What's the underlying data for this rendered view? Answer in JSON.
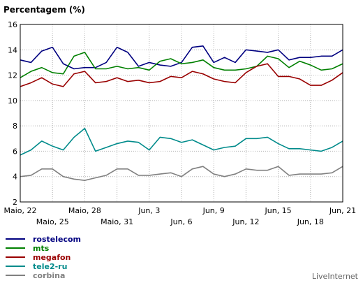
{
  "chart_data": {
    "type": "line",
    "title": "Percentagem (%)",
    "ylim": [
      2,
      16
    ],
    "yticks": [
      2,
      4,
      6,
      8,
      10,
      12,
      14,
      16
    ],
    "grid": true,
    "legend_position": "bottom-left",
    "x": [
      "2024-05-22",
      "2024-05-23",
      "2024-05-24",
      "2024-05-25",
      "2024-05-26",
      "2024-05-27",
      "2024-05-28",
      "2024-05-29",
      "2024-05-30",
      "2024-05-31",
      "2024-06-01",
      "2024-06-02",
      "2024-06-03",
      "2024-06-04",
      "2024-06-05",
      "2024-06-06",
      "2024-06-07",
      "2024-06-08",
      "2024-06-09",
      "2024-06-10",
      "2024-06-11",
      "2024-06-12",
      "2024-06-13",
      "2024-06-14",
      "2024-06-15",
      "2024-06-16",
      "2024-06-17",
      "2024-06-18",
      "2024-06-19",
      "2024-06-20",
      "2024-06-21"
    ],
    "xticks_row1": [
      {
        "date": "2024-05-22",
        "label": "Maio, 22"
      },
      {
        "date": "2024-05-28",
        "label": "Maio, 28"
      },
      {
        "date": "2024-06-03",
        "label": "Jun, 3"
      },
      {
        "date": "2024-06-09",
        "label": "Jun, 9"
      },
      {
        "date": "2024-06-15",
        "label": "Jun, 15"
      },
      {
        "date": "2024-06-21",
        "label": "Jun, 21"
      }
    ],
    "xticks_row2": [
      {
        "date": "2024-05-25",
        "label": "Maio, 25"
      },
      {
        "date": "2024-05-31",
        "label": "Maio, 31"
      },
      {
        "date": "2024-06-06",
        "label": "Jun, 6"
      },
      {
        "date": "2024-06-12",
        "label": "Jun, 12"
      },
      {
        "date": "2024-06-18",
        "label": "Jun, 18"
      }
    ],
    "series": [
      {
        "name": "rostelecom",
        "color": "#000080",
        "values": [
          13.2,
          13.0,
          13.9,
          14.2,
          12.9,
          12.5,
          12.6,
          12.6,
          13.0,
          14.2,
          13.8,
          12.7,
          13.0,
          12.8,
          12.7,
          13.0,
          14.2,
          14.3,
          13.0,
          13.4,
          13.0,
          14.0,
          13.9,
          13.8,
          14.0,
          13.2,
          13.4,
          13.4,
          13.5,
          13.5,
          14.0
        ]
      },
      {
        "name": "mts",
        "color": "#008000",
        "values": [
          11.8,
          12.3,
          12.6,
          12.2,
          12.1,
          13.5,
          13.8,
          12.5,
          12.5,
          12.7,
          12.5,
          12.6,
          12.4,
          13.1,
          13.3,
          12.9,
          13.0,
          13.2,
          12.6,
          12.4,
          12.4,
          12.5,
          12.7,
          13.5,
          13.3,
          12.6,
          13.1,
          12.8,
          12.4,
          12.5,
          12.9
        ]
      },
      {
        "name": "megafon",
        "color": "#990000",
        "values": [
          11.1,
          11.4,
          11.8,
          11.3,
          11.1,
          12.1,
          12.3,
          11.4,
          11.5,
          11.8,
          11.5,
          11.6,
          11.4,
          11.5,
          11.9,
          11.8,
          12.3,
          12.1,
          11.7,
          11.5,
          11.4,
          12.2,
          12.7,
          12.9,
          11.9,
          11.9,
          11.7,
          11.2,
          11.2,
          11.6,
          12.2
        ]
      },
      {
        "name": "tele2-ru",
        "color": "#008B8B",
        "values": [
          5.7,
          6.1,
          6.8,
          6.4,
          6.1,
          7.1,
          7.8,
          6.0,
          6.3,
          6.6,
          6.8,
          6.7,
          6.1,
          7.1,
          7.0,
          6.7,
          6.9,
          6.5,
          6.1,
          6.3,
          6.4,
          7.0,
          7.0,
          7.1,
          6.6,
          6.2,
          6.2,
          6.1,
          6.0,
          6.3,
          6.8
        ]
      },
      {
        "name": "corbina",
        "color": "#808080",
        "values": [
          4.0,
          4.1,
          4.6,
          4.6,
          4.0,
          3.8,
          3.7,
          3.9,
          4.1,
          4.6,
          4.6,
          4.1,
          4.1,
          4.2,
          4.3,
          4.0,
          4.6,
          4.8,
          4.2,
          4.0,
          4.2,
          4.6,
          4.5,
          4.5,
          4.8,
          4.1,
          4.2,
          4.2,
          4.2,
          4.3,
          4.8
        ]
      }
    ]
  },
  "footer": {
    "brand": "LiveInternet"
  }
}
